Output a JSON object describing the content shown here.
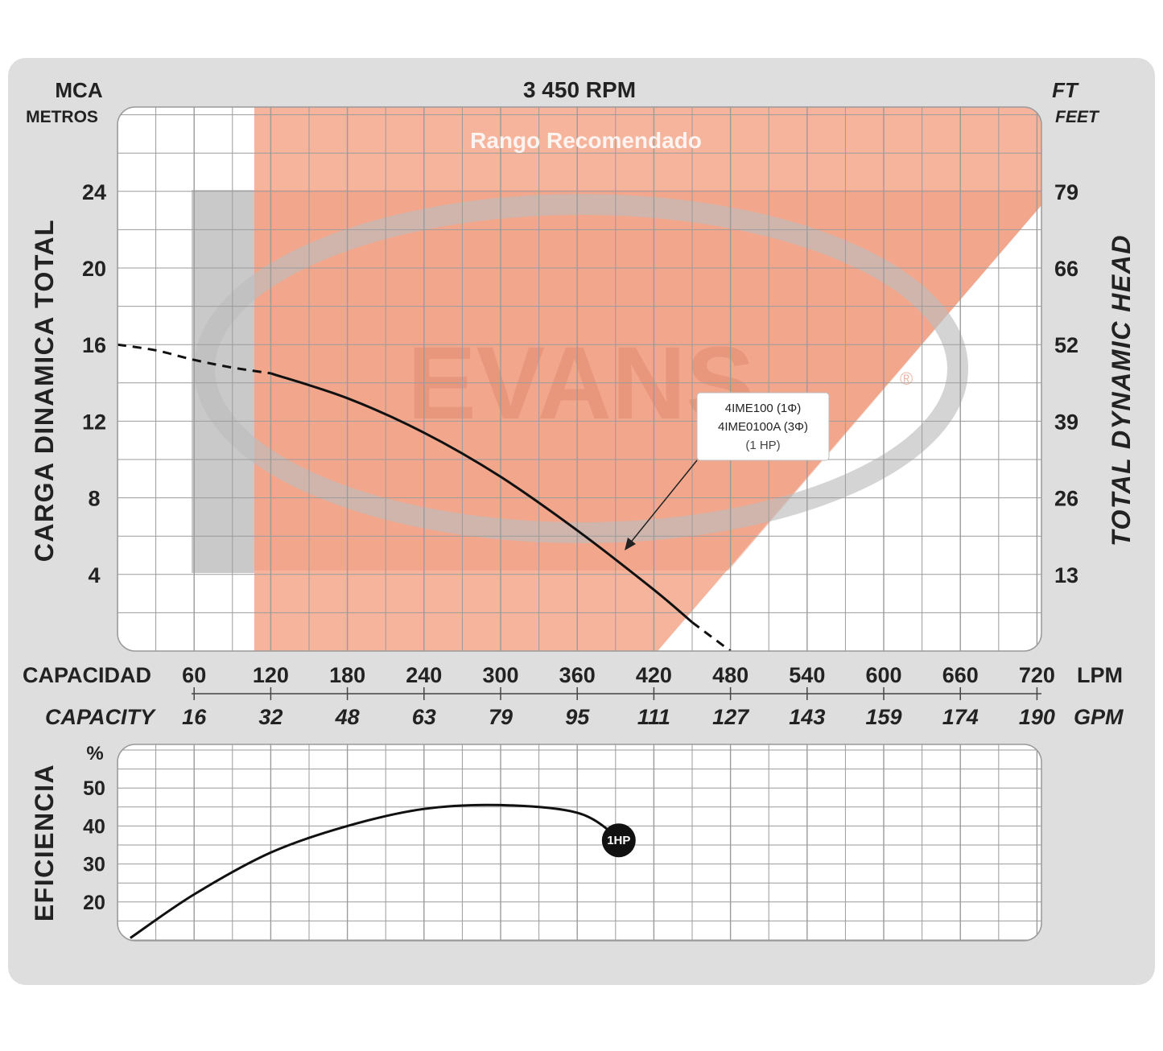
{
  "chart_data": [
    {
      "type": "line",
      "title": "3 450 RPM",
      "left_axis": {
        "unit_top": "MCA",
        "unit_bottom": "METROS",
        "label": "CARGA DINAMICA TOTAL",
        "ticks": [
          4,
          8,
          12,
          16,
          20,
          24
        ],
        "ylim": [
          0,
          28
        ]
      },
      "right_axis": {
        "unit_top": "FT",
        "unit_bottom": "FEET",
        "label": "TOTAL DYNAMIC HEAD",
        "ticks": [
          13,
          26,
          39,
          52,
          66,
          79
        ]
      },
      "x_axis_lpm": {
        "label": "CAPACIDAD",
        "unit": "LPM",
        "ticks": [
          "60",
          "120",
          "180",
          "240",
          "300",
          "360",
          "420",
          "480",
          "540",
          "600",
          "660",
          "720"
        ]
      },
      "x_axis_gpm": {
        "label": "CAPACITY",
        "unit": "GPM",
        "ticks": [
          "16",
          "32",
          "48",
          "63",
          "79",
          "95",
          "111",
          "127",
          "143",
          "159",
          "174",
          "190"
        ]
      },
      "xlim_lpm": [
        0,
        720
      ],
      "recommended_range_label": "Rango Recomendado",
      "watermark": "EVANS",
      "watermark_mark": "®",
      "curve_annotation": {
        "line1": "4IME100 (1Φ)",
        "line2": "4IME0100A (3Φ)",
        "line3": "(1 HP)"
      },
      "series": [
        {
          "label": "1 HP",
          "x": [
            0,
            30,
            60,
            90,
            120,
            180,
            240,
            300,
            360,
            420,
            450,
            480
          ],
          "y": [
            16.0,
            15.7,
            15.2,
            14.8,
            14.5,
            13.2,
            11.4,
            9.1,
            6.3,
            3.2,
            1.5,
            0.0
          ]
        }
      ]
    },
    {
      "type": "line",
      "ylabel": "EFICIENCIA",
      "unit": "%",
      "ticks": [
        20,
        30,
        40,
        50
      ],
      "ylim": [
        10,
        60
      ],
      "xlim_lpm": [
        0,
        720
      ],
      "series": [
        {
          "label": "1HP",
          "x": [
            10,
            60,
            120,
            180,
            240,
            300,
            360,
            390
          ],
          "y": [
            10.5,
            22,
            33,
            40,
            44.5,
            45.5,
            43.5,
            37.5
          ]
        }
      ]
    }
  ]
}
